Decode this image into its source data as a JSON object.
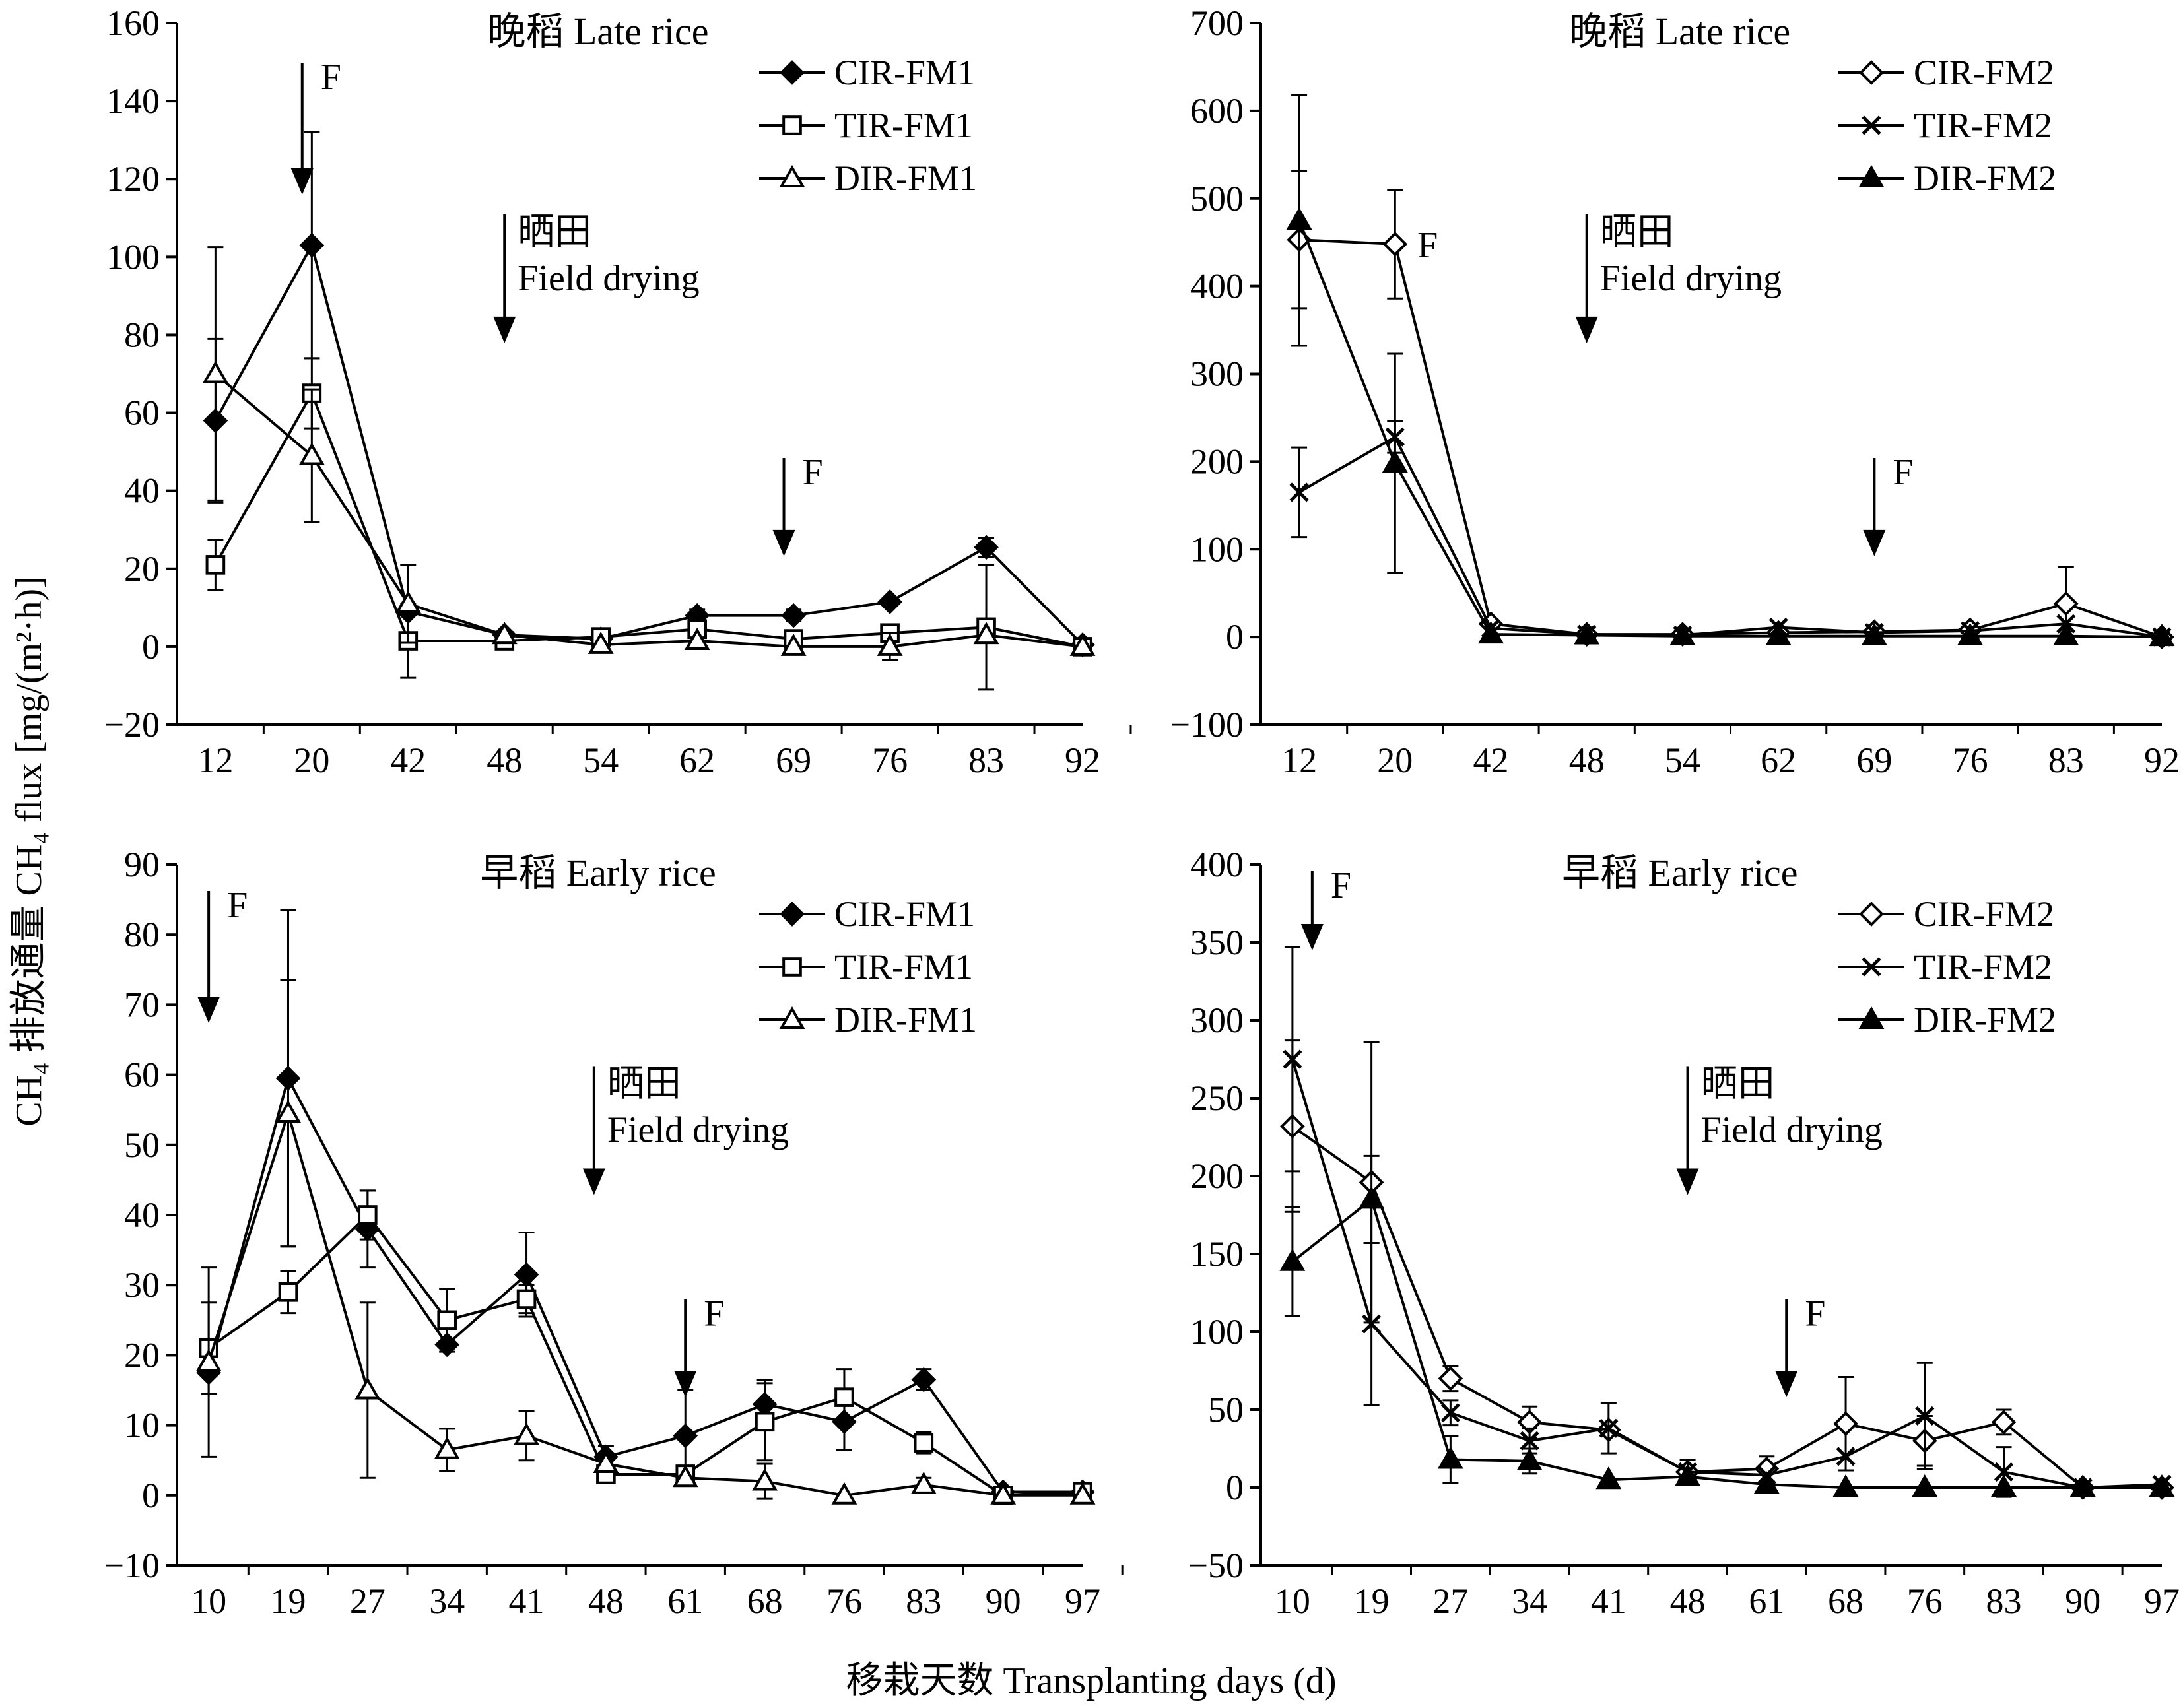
{
  "figure": {
    "ylabel": "CH₄ 排放通量 CH₄ flux [mg/(m²·h)]",
    "xlabel": "移栽天数 Transplanting days (d)"
  },
  "chart_data": [
    {
      "type": "line",
      "title": "晚稻 Late rice",
      "ylim": [
        -20,
        160
      ],
      "yticks": [
        -20,
        0,
        20,
        40,
        60,
        80,
        100,
        120,
        140,
        160
      ],
      "categories": [
        "12",
        "20",
        "42",
        "48",
        "54",
        "62",
        "69",
        "76",
        "83",
        "92"
      ],
      "legend_position": "top-right",
      "series": [
        {
          "name": "CIR-FM1",
          "marker": "diamond-filled",
          "values": [
            58,
            103,
            9,
            3,
            2,
            8,
            8,
            11.5,
            25.5,
            0.5
          ],
          "errors": [
            21,
            29,
            0,
            0,
            0,
            1.5,
            1.5,
            0,
            2.5,
            0
          ]
        },
        {
          "name": "TIR-FM1",
          "marker": "square-open",
          "values": [
            21,
            65,
            1.5,
            1.5,
            2.5,
            4.5,
            2,
            3.5,
            5,
            0
          ],
          "errors": [
            6.5,
            9,
            9.5,
            0,
            0,
            0,
            0,
            0,
            16,
            0
          ]
        },
        {
          "name": "DIR-FM1",
          "marker": "triangle-open",
          "values": [
            70,
            49,
            11,
            3,
            0.5,
            1.5,
            0,
            0,
            3,
            0
          ],
          "errors": [
            32.5,
            17,
            10,
            0,
            0,
            0,
            0,
            3.5,
            0,
            0
          ]
        }
      ],
      "annotations": [
        {
          "label": "F",
          "category_pos": 0.9
        },
        {
          "label": "晒田",
          "label2": "Field drying",
          "category_pos": 3
        },
        {
          "label": "F",
          "category_pos": 5.9
        }
      ]
    },
    {
      "type": "line",
      "title": "晚稻 Late rice",
      "ylim": [
        -100,
        700
      ],
      "yticks": [
        -100,
        0,
        100,
        200,
        300,
        400,
        500,
        600,
        700
      ],
      "categories": [
        "12",
        "20",
        "42",
        "48",
        "54",
        "62",
        "69",
        "76",
        "83",
        "92"
      ],
      "legend_position": "top-right",
      "series": [
        {
          "name": "CIR-FM2",
          "marker": "diamond-open",
          "values": [
            453,
            448,
            15,
            3,
            3,
            5,
            6,
            8,
            38,
            0
          ],
          "errors": [
            78,
            62,
            0,
            0,
            0,
            0,
            0,
            0,
            42,
            0
          ]
        },
        {
          "name": "TIR-FM2",
          "marker": "x",
          "values": [
            165,
            228,
            10,
            3,
            2,
            11,
            5,
            7,
            15,
            0
          ],
          "errors": [
            51,
            18,
            0,
            0,
            0,
            0,
            0,
            0,
            0,
            0
          ]
        },
        {
          "name": "DIR-FM2",
          "marker": "triangle-filled",
          "values": [
            475,
            198,
            3,
            2,
            1,
            1,
            1,
            1,
            1,
            0
          ],
          "errors": [
            143,
            125,
            0,
            0,
            0,
            0,
            0,
            0,
            0,
            0
          ]
        }
      ],
      "annotations": [
        {
          "label": "F",
          "category_pos": 1.15,
          "y_value": 448,
          "arrow": false
        },
        {
          "label": "晒田",
          "label2": "Field drying",
          "category_pos": 3
        },
        {
          "label": "F",
          "category_pos": 6
        }
      ]
    },
    {
      "type": "line",
      "title": "早稻 Early rice",
      "ylim": [
        -10,
        90
      ],
      "yticks": [
        -10,
        0,
        10,
        20,
        30,
        40,
        50,
        60,
        70,
        80,
        90
      ],
      "categories": [
        "10",
        "19",
        "27",
        "34",
        "41",
        "48",
        "61",
        "68",
        "76",
        "83",
        "90",
        "97"
      ],
      "legend_position": "top-right",
      "series": [
        {
          "name": "CIR-FM1",
          "marker": "diamond-filled",
          "values": [
            17.5,
            59.5,
            38,
            21.5,
            31.5,
            5.5,
            8.5,
            13,
            10.5,
            16.5,
            0.5,
            0.5
          ],
          "errors": [
            0,
            24,
            5.5,
            0,
            6,
            1.5,
            6.5,
            3.5,
            4,
            1.5,
            0,
            0
          ]
        },
        {
          "name": "TIR-FM1",
          "marker": "square-open",
          "values": [
            21,
            29,
            40,
            25,
            28,
            3,
            3,
            10.5,
            14,
            7.5,
            0,
            0.5
          ],
          "errors": [
            6.5,
            3,
            3.5,
            4.5,
            2,
            1,
            0,
            5.5,
            4,
            1.5,
            0,
            0
          ]
        },
        {
          "name": "DIR-FM1",
          "marker": "triangle-open",
          "values": [
            19,
            54.5,
            15,
            6.5,
            8.5,
            4.5,
            2.5,
            2,
            0,
            1.5,
            0,
            0
          ],
          "errors": [
            13.5,
            19,
            12.5,
            3,
            3.5,
            0,
            0,
            2.5,
            0,
            1,
            0,
            0
          ]
        }
      ],
      "annotations": [
        {
          "label": "F",
          "category_pos": 0
        },
        {
          "label": "晒田",
          "label2": "Field drying",
          "category_pos": 4.85
        },
        {
          "label": "F",
          "category_pos": 6
        }
      ]
    },
    {
      "type": "line",
      "title": "早稻 Early rice",
      "ylim": [
        -50,
        400
      ],
      "yticks": [
        -50,
        0,
        50,
        100,
        150,
        200,
        250,
        300,
        350,
        400
      ],
      "categories": [
        "10",
        "19",
        "27",
        "34",
        "41",
        "48",
        "61",
        "68",
        "76",
        "83",
        "90",
        "97"
      ],
      "legend_position": "top-right",
      "series": [
        {
          "name": "CIR-FM2",
          "marker": "diamond-open",
          "values": [
            232,
            196,
            70,
            42,
            37,
            10,
            12,
            41,
            30,
            42,
            0,
            0
          ],
          "errors": [
            55,
            90,
            8,
            10,
            0,
            0,
            8,
            30,
            16,
            8,
            0,
            0
          ]
        },
        {
          "name": "TIR-FM2",
          "marker": "x",
          "values": [
            275,
            105,
            48,
            30,
            38,
            10,
            8,
            20,
            46,
            10,
            0,
            2
          ],
          "errors": [
            72,
            52,
            8,
            8,
            16,
            8,
            0,
            0,
            34,
            16,
            0,
            0
          ]
        },
        {
          "name": "DIR-FM2",
          "marker": "triangle-filled",
          "values": [
            145,
            185,
            18,
            17,
            5,
            7,
            2,
            0,
            0,
            0,
            0,
            0
          ],
          "errors": [
            35,
            28,
            15,
            8,
            0,
            0,
            0,
            0,
            0,
            0,
            0,
            0
          ]
        }
      ],
      "annotations": [
        {
          "label": "F",
          "category_pos": 0.25
        },
        {
          "label": "晒田",
          "label2": "Field drying",
          "category_pos": 5
        },
        {
          "label": "F",
          "category_pos": 6.25
        }
      ]
    }
  ]
}
